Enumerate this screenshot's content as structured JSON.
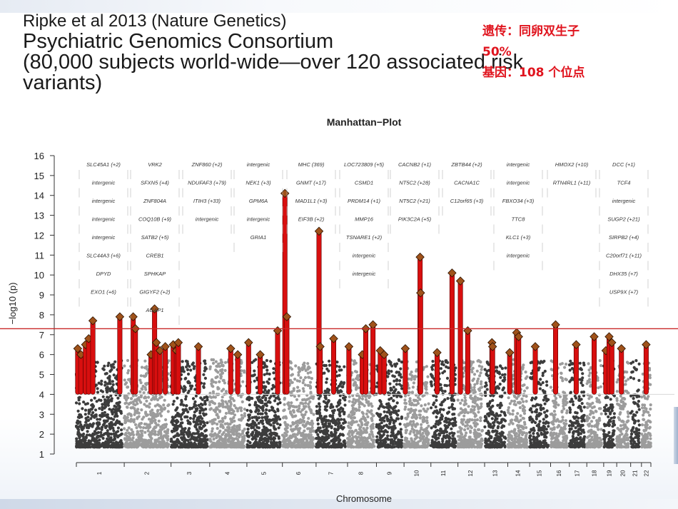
{
  "slide": {
    "title_lines": [
      "Ripke et al 2013 (Nature Genetics)",
      "Psychiatric Genomics Consortium",
      "(80,000 subjects world-wide—over 120 associated risk",
      "variants)"
    ],
    "note_lines": [
      "遗传：同卵双生子",
      "50%",
      "基因：108 个位点"
    ]
  },
  "chart_data": {
    "type": "scatter",
    "title": "Manhattan−Plot",
    "xlabel": "Chromosome",
    "ylabel": "−log10 (p)",
    "ylim": [
      1,
      16
    ],
    "y_ticks": [
      1,
      2,
      3,
      4,
      5,
      6,
      7,
      8,
      9,
      10,
      11,
      12,
      13,
      14,
      15,
      16
    ],
    "grid": false,
    "significance_threshold": 7.3,
    "suggestive_threshold": 4,
    "colors": {
      "odd_chromosome": "#3c3c3c",
      "even_chromosome": "#9c9c9c",
      "significant_locus": "#d80f0f",
      "peak_marker": "#a0521a",
      "threshold_line": "#c82828"
    },
    "chromosomes": [
      "1",
      "2",
      "3",
      "4",
      "5",
      "6",
      "7",
      "8",
      "9",
      "10",
      "11",
      "12",
      "13",
      "14",
      "15",
      "16",
      "17",
      "18",
      "19",
      "20",
      "21",
      "22"
    ],
    "chromosome_lengths": [
      248,
      242,
      198,
      190,
      181,
      171,
      159,
      145,
      138,
      134,
      135,
      133,
      114,
      107,
      102,
      90,
      83,
      80,
      59,
      64,
      47,
      51
    ],
    "loci": [
      {
        "chr": "1",
        "pos": 0.03,
        "top": 6.3
      },
      {
        "chr": "1",
        "pos": 0.1,
        "top": 6.0
      },
      {
        "chr": "1",
        "pos": 0.2,
        "top": 6.5
      },
      {
        "chr": "1",
        "pos": 0.27,
        "top": 6.8
      },
      {
        "chr": "1",
        "pos": 0.36,
        "top": 7.7
      },
      {
        "chr": "1",
        "pos": 0.95,
        "top": 7.9
      },
      {
        "chr": "2",
        "pos": 0.2,
        "top": 7.9
      },
      {
        "chr": "2",
        "pos": 0.25,
        "top": 7.3
      },
      {
        "chr": "2",
        "pos": 0.6,
        "top": 6.0
      },
      {
        "chr": "2",
        "pos": 0.68,
        "top": 8.3
      },
      {
        "chr": "2",
        "pos": 0.72,
        "top": 6.6
      },
      {
        "chr": "2",
        "pos": 0.8,
        "top": 6.2
      },
      {
        "chr": "2",
        "pos": 0.92,
        "top": 6.4
      },
      {
        "chr": "3",
        "pos": 0.06,
        "top": 6.5
      },
      {
        "chr": "3",
        "pos": 0.15,
        "top": 6.2
      },
      {
        "chr": "3",
        "pos": 0.2,
        "top": 6.6
      },
      {
        "chr": "3",
        "pos": 0.75,
        "top": 6.4
      },
      {
        "chr": "4",
        "pos": 0.6,
        "top": 6.3
      },
      {
        "chr": "4",
        "pos": 0.8,
        "top": 6.0
      },
      {
        "chr": "5",
        "pos": 0.05,
        "top": 6.6
      },
      {
        "chr": "5",
        "pos": 0.4,
        "top": 6.0
      },
      {
        "chr": "5",
        "pos": 0.92,
        "top": 7.2
      },
      {
        "chr": "6",
        "pos": 0.08,
        "top": 14.1
      },
      {
        "chr": "6",
        "pos": 0.14,
        "top": 7.9
      },
      {
        "chr": "7",
        "pos": 0.1,
        "top": 12.2
      },
      {
        "chr": "7",
        "pos": 0.14,
        "top": 6.4
      },
      {
        "chr": "7",
        "pos": 0.6,
        "top": 6.8
      },
      {
        "chr": "8",
        "pos": 0.05,
        "top": 6.4
      },
      {
        "chr": "8",
        "pos": 0.55,
        "top": 6.0
      },
      {
        "chr": "8",
        "pos": 0.68,
        "top": 7.3
      },
      {
        "chr": "8",
        "pos": 0.95,
        "top": 7.5
      },
      {
        "chr": "9",
        "pos": 0.15,
        "top": 6.2
      },
      {
        "chr": "9",
        "pos": 0.3,
        "top": 6.0
      },
      {
        "chr": "10",
        "pos": 0.05,
        "top": 6.3
      },
      {
        "chr": "10",
        "pos": 0.65,
        "top": 10.9
      },
      {
        "chr": "10",
        "pos": 0.67,
        "top": 9.1
      },
      {
        "chr": "11",
        "pos": 0.25,
        "top": 6.1
      },
      {
        "chr": "11",
        "pos": 0.85,
        "top": 10.1
      },
      {
        "chr": "12",
        "pos": 0.1,
        "top": 9.7
      },
      {
        "chr": "12",
        "pos": 0.4,
        "top": 7.2
      },
      {
        "chr": "13",
        "pos": 0.35,
        "top": 6.6
      },
      {
        "chr": "13",
        "pos": 0.38,
        "top": 6.4
      },
      {
        "chr": "14",
        "pos": 0.1,
        "top": 6.1
      },
      {
        "chr": "14",
        "pos": 0.45,
        "top": 7.1
      },
      {
        "chr": "14",
        "pos": 0.55,
        "top": 6.9
      },
      {
        "chr": "15",
        "pos": 0.3,
        "top": 6.4
      },
      {
        "chr": "16",
        "pos": 0.3,
        "top": 7.5
      },
      {
        "chr": "17",
        "pos": 0.45,
        "top": 6.5
      },
      {
        "chr": "18",
        "pos": 0.5,
        "top": 6.9
      },
      {
        "chr": "19",
        "pos": 0.2,
        "top": 6.2
      },
      {
        "chr": "19",
        "pos": 0.5,
        "top": 6.9
      },
      {
        "chr": "19",
        "pos": 0.75,
        "top": 6.6
      },
      {
        "chr": "20",
        "pos": 0.4,
        "top": 6.3
      },
      {
        "chr": "22",
        "pos": 0.5,
        "top": 6.5
      }
    ],
    "annotations": [
      {
        "column": 0,
        "labels": [
          "SLC45A1 (+2)",
          "intergenic",
          "intergenic",
          "intergenic",
          "intergenic",
          "SLC44A3 (+6)",
          "DPYD",
          "EXO1 (+6)"
        ]
      },
      {
        "column": 1,
        "labels": [
          "VRK2",
          "SFXN5 (+4)",
          "ZNF804A",
          "COQ10B (+9)",
          "SATB2 (+5)",
          "CREB1",
          "SPHKAP",
          "GIGYF2 (+2)",
          "AGAP1"
        ]
      },
      {
        "column": 2,
        "labels": [
          "ZNF860 (+2)",
          "NDUFAF3 (+79)",
          "ITIH3 (+33)",
          "intergenic"
        ]
      },
      {
        "column": 3,
        "labels": [
          "intergenic",
          "NEK1 (+3)",
          "GPM6A",
          "intergenic",
          "GRIA1"
        ]
      },
      {
        "column": 4,
        "labels": [
          "MHC (369)",
          "GNMT (+17)",
          "MAD1L1 (+3)",
          "EIF3B (+2)"
        ]
      },
      {
        "column": 5,
        "labels": [
          "LOC723809 (+5)",
          "CSMD1",
          "PRDM14 (+1)",
          "MMP16",
          "TSNARE1 (+2)",
          "intergenic",
          "intergenic"
        ]
      },
      {
        "column": 6,
        "labels": [
          "CACNB2 (+1)",
          "NT5C2 (+28)",
          "NT5C2 (+21)",
          "PIK3C2A (+5)"
        ]
      },
      {
        "column": 7,
        "labels": [
          "ZBTB44 (+2)",
          "CACNA1C",
          "C12orf65 (+3)"
        ]
      },
      {
        "column": 8,
        "labels": [
          "intergenic",
          "intergenic",
          "FBXO34 (+3)",
          "TTC8",
          "KLC1 (+3)",
          "intergenic"
        ]
      },
      {
        "column": 9,
        "labels": [
          "HMOX2 (+10)",
          "RTN4RL1 (+11)"
        ]
      },
      {
        "column": 10,
        "labels": [
          "DCC (+1)",
          "TCF4",
          "intergenic",
          "SUGP2 (+21)",
          "SIRPB2 (+4)",
          "C20orf71 (+11)",
          "DHX35 (+7)",
          "USP9X (+7)"
        ]
      }
    ]
  }
}
